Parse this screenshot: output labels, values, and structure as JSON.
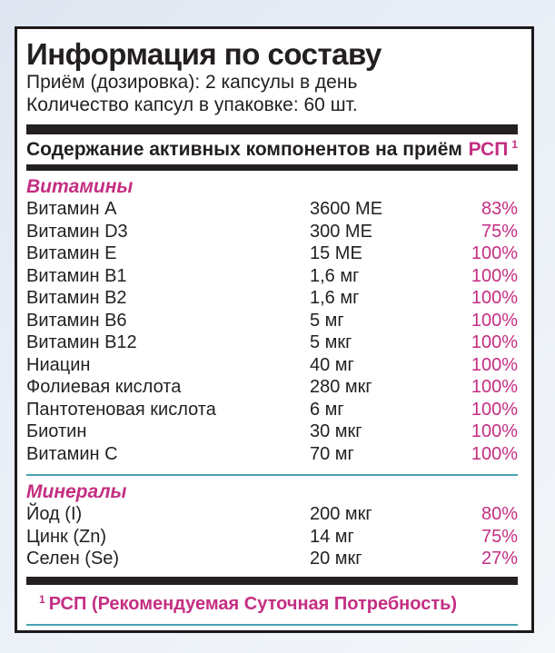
{
  "panel": {
    "title": "Информация по составу",
    "dosage_line": "Приём (дозировка): 2 капсулы в день",
    "quantity_line": "Количество капсул в упаковке: 60 шт.",
    "table_header": {
      "label": "Содержание активных компонентов на приём",
      "rsp_label": "РСП",
      "rsp_sup": "1"
    },
    "sections": [
      {
        "name": "Витамины",
        "rows": [
          {
            "name": "Витамин А",
            "amount": "3600 МЕ",
            "rsp": "83%"
          },
          {
            "name": "Витамин D3",
            "amount": "300 МЕ",
            "rsp": "75%"
          },
          {
            "name": "Витамин Е",
            "amount": "15 МЕ",
            "rsp": "100%"
          },
          {
            "name": "Витамин В1",
            "amount": "1,6 мг",
            "rsp": "100%"
          },
          {
            "name": "Витамин В2",
            "amount": "1,6 мг",
            "rsp": "100%"
          },
          {
            "name": "Витамин В6",
            "amount": "5 мг",
            "rsp": "100%"
          },
          {
            "name": "Витамин В12",
            "amount": "5 мкг",
            "rsp": "100%"
          },
          {
            "name": "Ниацин",
            "amount": "40 мг",
            "rsp": "100%"
          },
          {
            "name": "Фолиевая кислота",
            "amount": "280 мкг",
            "rsp": "100%"
          },
          {
            "name": "Пантотеновая кислота",
            "amount": "6 мг",
            "rsp": "100%"
          },
          {
            "name": "Биотин",
            "amount": "30 мкг",
            "rsp": "100%"
          },
          {
            "name": "Витамин С",
            "amount": "70 мг",
            "rsp": "100%"
          }
        ]
      },
      {
        "name": "Минералы",
        "rows": [
          {
            "name": "Йод (I)",
            "amount": "200 мкг",
            "rsp": "80%"
          },
          {
            "name": "Цинк (Zn)",
            "amount": "14 мг",
            "rsp": "75%"
          },
          {
            "name": "Селен (Se)",
            "amount": "20 мкг",
            "rsp": "27%"
          }
        ]
      }
    ],
    "footnote": {
      "sup": "1",
      "text": "РСП (Рекомендуемая Суточная Потребность)"
    },
    "colors": {
      "accent_magenta": "#c42e82",
      "bar_black": "#241f20",
      "separator_teal": "#4aa2b2",
      "text_black": "#231f20"
    }
  }
}
